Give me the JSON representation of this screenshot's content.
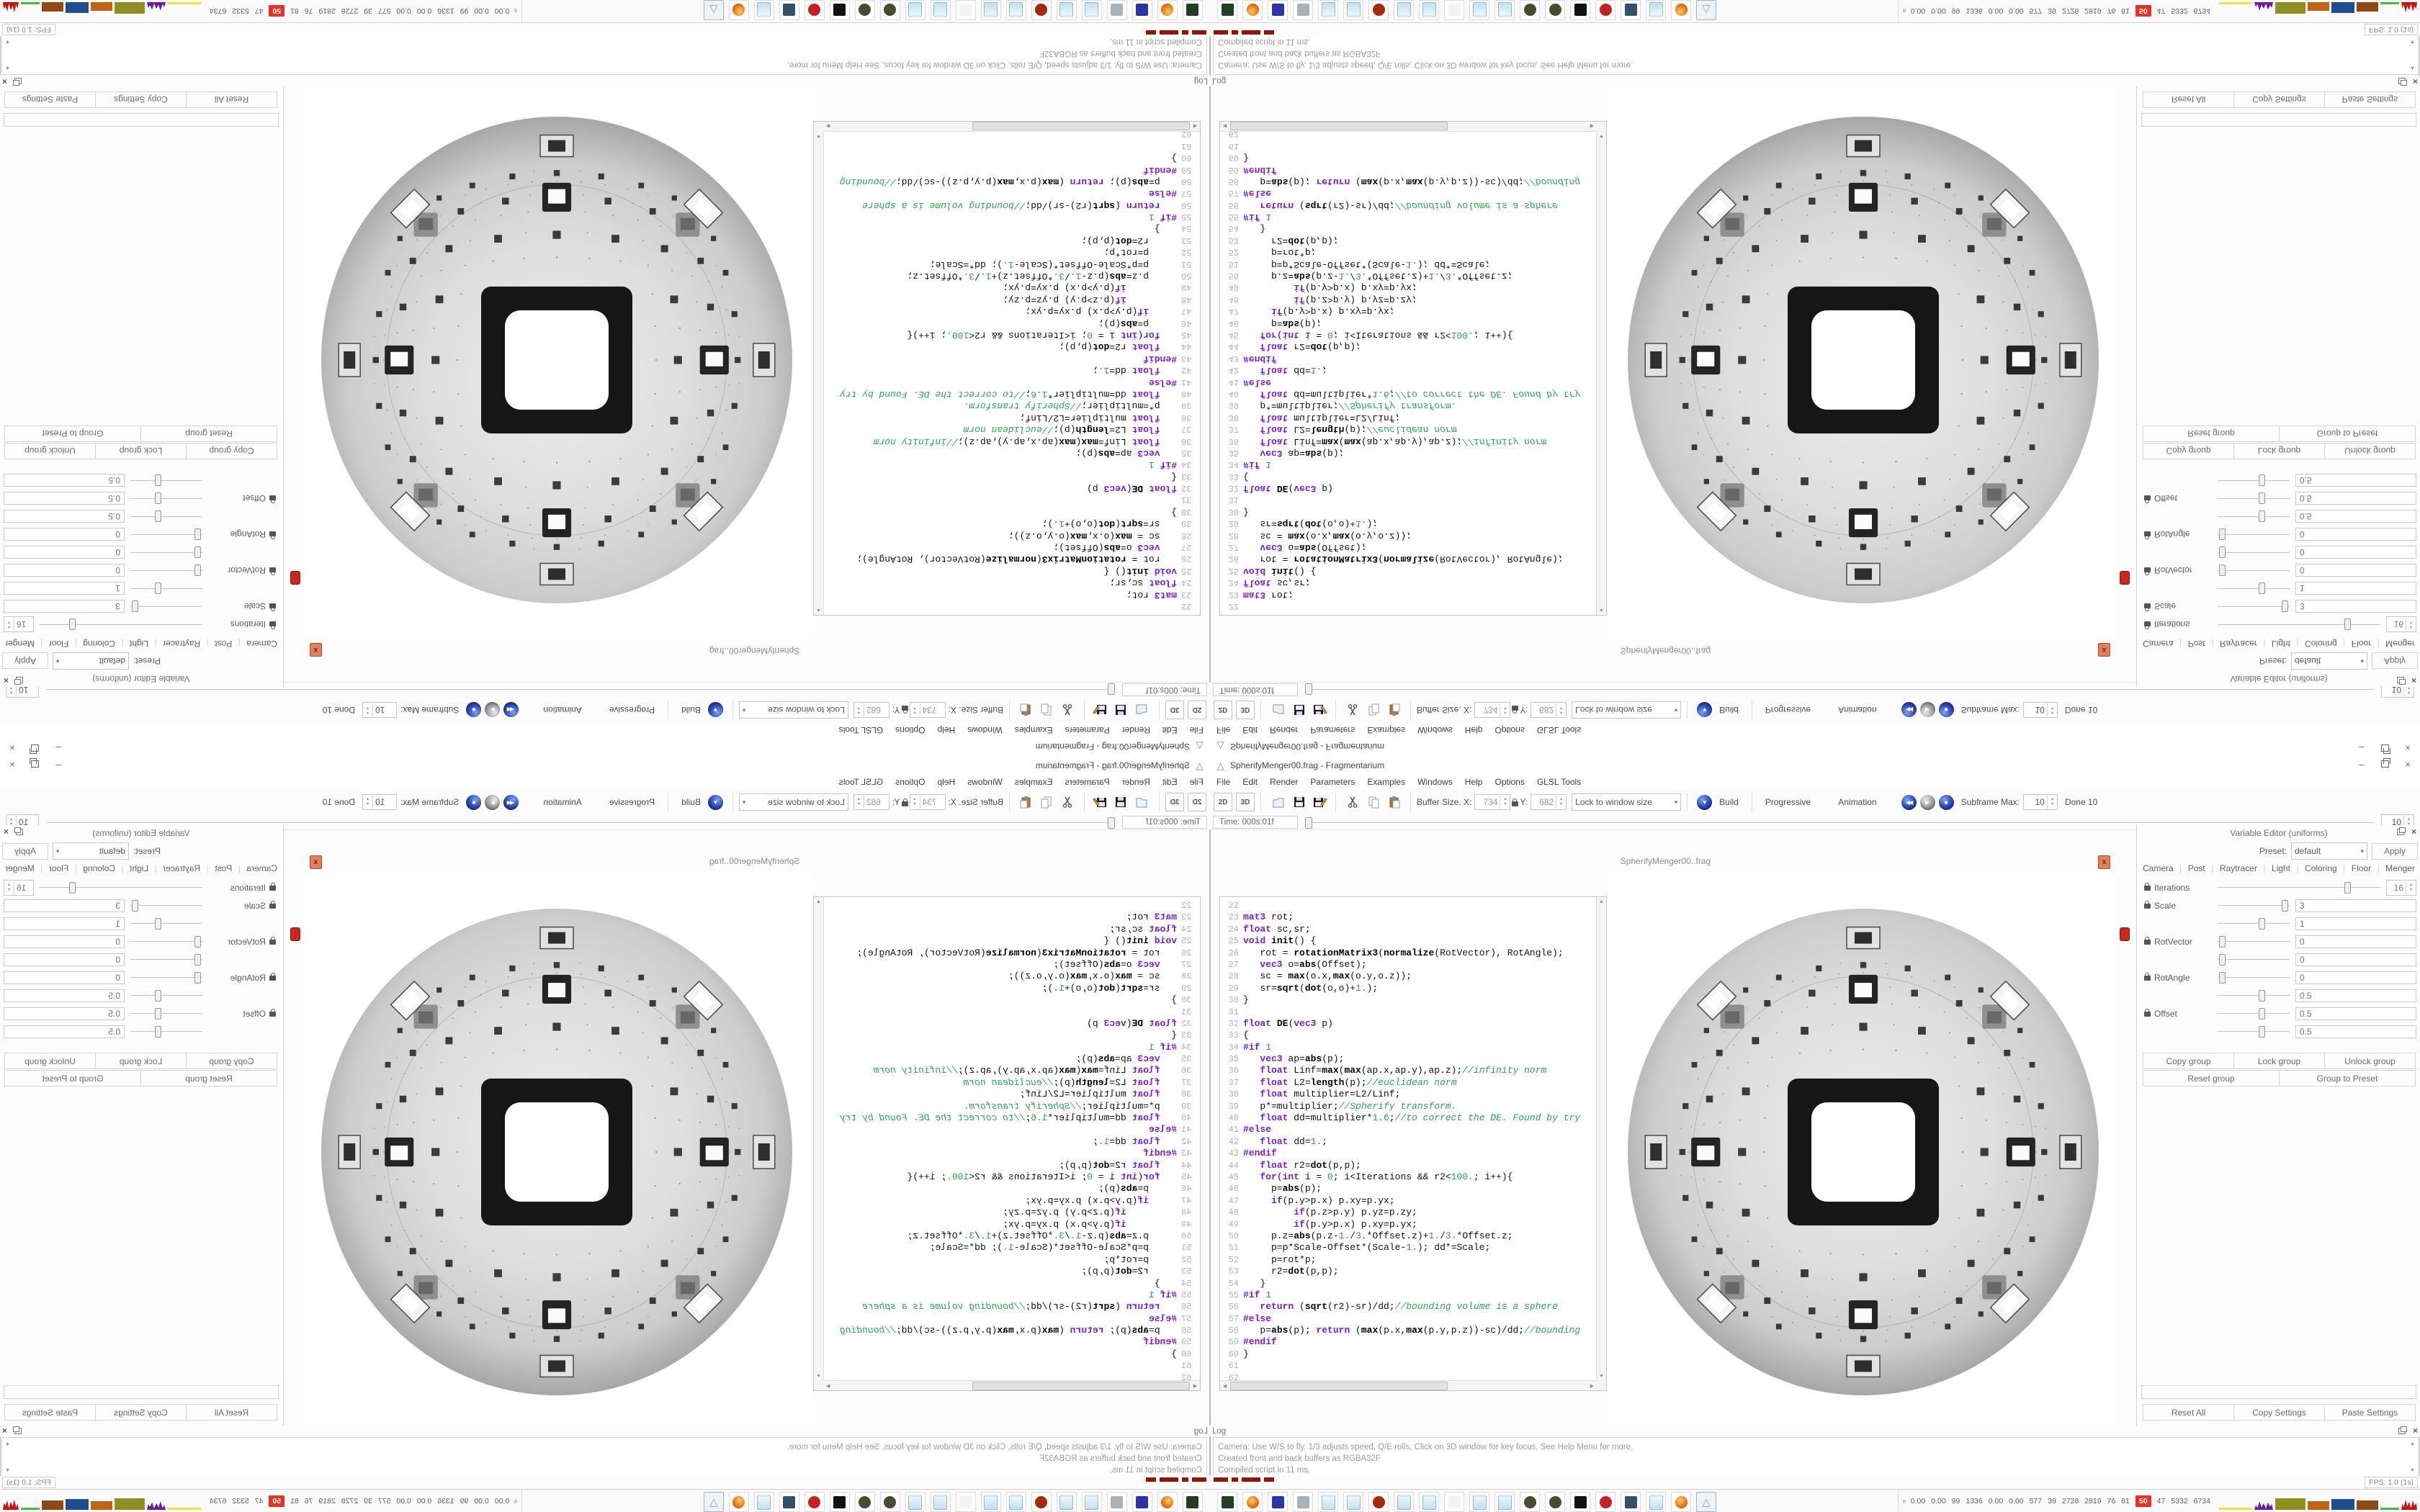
{
  "window": {
    "title": "SpherifyMenger00.frag - Fragmentarium"
  },
  "menu": {
    "items": [
      "File",
      "Edit",
      "Render",
      "Parameters",
      "Examples",
      "Windows",
      "Help",
      "Options",
      "GLSL Tools"
    ]
  },
  "toolbar": {
    "btn2d": "2D",
    "btn3d": "3D",
    "buffer_size_label": "Buffer Size. X:",
    "buffer_x": "734",
    "buffer_y_label": "Y:",
    "buffer_y": "682",
    "lock_window_combo": "Lock to window size",
    "build_label": "Build",
    "progressive_label": "Progressive",
    "animation_label": "Animation",
    "subframe_label": "Subframe Max:",
    "subframe_value": "10",
    "done_label": "Done 10"
  },
  "timebar": {
    "time_label": "Time: 000s:01f",
    "right_spin": "10"
  },
  "tabbar": {
    "tab_label": "SpherifyMenger00..frag",
    "close_glyph": "x"
  },
  "editor": {
    "first_line_number": 22,
    "lines": [
      "",
      "mat3 rot;",
      "float sc,sr;",
      "void init() {",
      "   rot = rotationMatrix3(normalize(RotVector), RotAngle);",
      "   vec3 o=abs(Offset);",
      "   sc = max(o.x,max(o.y,o.z));",
      "   sr=sqrt(dot(o,o)+1.);",
      "}",
      "",
      "float DE(vec3 p)",
      "{",
      "#if 1",
      "   vec3 ap=abs(p);",
      "   float Linf=max(max(ap.x,ap.y),ap.z);//infinity norm",
      "   float L2=length(p);//euclidean norm",
      "   float multiplier=L2/Linf;",
      "   p*=multiplier;//Spherify transform.",
      "   float dd=multiplier*1.6;//to correct the DE. Found by try",
      "#else",
      "   float dd=1.;",
      "#endif",
      "   float r2=dot(p,p);",
      "   for(int i = 0; i<Iterations && r2<100.; i++){",
      "     p=abs(p);",
      "     if(p.y>p.x) p.xy=p.yx;",
      "         if(p.z>p.y) p.yz=p.zy;",
      "         if(p.y>p.x) p.xy=p.yx;",
      "     p.z=abs(p.z-1./3.*Offset.z)+1./3.*Offset.z;",
      "     p=p*Scale-Offset*(Scale-1.); dd*=Scale;",
      "     p=rot*p;",
      "     r2=dot(p,p);",
      "   }",
      "#if 1",
      "   return (sqrt(r2)-sr)/dd;//bounding volume is a sphere",
      "#else",
      "   p=abs(p); return (max(p.x,max(p.y,p.z))-sc)/dd;//bounding",
      "#endif",
      "}",
      "",
      ""
    ]
  },
  "variable_editor": {
    "title": "Variable Editor (uniforms)",
    "preset_label": "Preset:",
    "preset_value": "default",
    "apply_label": "Apply",
    "tabs": [
      "Camera",
      "Post",
      "Raytracer",
      "Light",
      "Coloring",
      "Floor",
      "Menger"
    ],
    "active_tab": "Menger",
    "rows": [
      {
        "label": "Iterations",
        "value": "16",
        "slider": 0.79,
        "widget": "spin",
        "lock": true
      },
      {
        "label": "Scale",
        "value": "3",
        "slider": 0.92,
        "widget": "field",
        "lock": true
      },
      {
        "label": "",
        "value": "1",
        "slider": 0.6,
        "widget": "field",
        "lock": false
      },
      {
        "label": "RotVector",
        "value": "0",
        "slider": 0.05,
        "widget": "field",
        "lock": true
      },
      {
        "label": "",
        "value": "0",
        "slider": 0.05,
        "widget": "field",
        "lock": false
      },
      {
        "label": "RotAngle",
        "value": "0",
        "slider": 0.05,
        "widget": "field",
        "lock": true
      },
      {
        "label": "",
        "value": "0.5",
        "slider": 0.6,
        "widget": "field",
        "lock": false
      },
      {
        "label": "Offset",
        "value": "0.5",
        "slider": 0.6,
        "widget": "field",
        "lock": true
      },
      {
        "label": "",
        "value": "0.5",
        "slider": 0.6,
        "widget": "field",
        "lock": false
      }
    ],
    "group_buttons_row1": [
      "Copy group",
      "Lock group",
      "Unlock group"
    ],
    "group_buttons_row2": [
      "Reset group",
      "Group to Preset"
    ],
    "bottom_buttons": [
      "Reset All",
      "Copy Settings",
      "Paste Settings"
    ]
  },
  "log": {
    "title": "Log",
    "lines": [
      "Camera: Use W/S to fly, 1/3 adjusts speed, Q/E rolls, Click on 3D window for key focus, See Help Menu for more,",
      "Created front and back buffers as RGBA32F",
      "Compiled script in 11 ms,"
    ],
    "fps": "FPS: 1.0 (1s)"
  },
  "taskbar": {
    "icons": [
      {
        "name": "system-monitor-icon",
        "color": "#233f23",
        "kind": "plain"
      },
      {
        "name": "firefox-icon",
        "color": "#e66000",
        "kind": "ff"
      },
      {
        "name": "floppy-64-icon",
        "color": "#2a35a8",
        "kind": "plain"
      },
      {
        "name": "scroll-document-icon",
        "color": "#a8b2bb",
        "kind": "plain"
      },
      {
        "name": "notepad-icon",
        "color": "#bfe0ef",
        "kind": "pad"
      },
      {
        "name": "notepad-icon",
        "color": "#bfe0ef",
        "kind": "pad"
      },
      {
        "name": "red-splat-icon",
        "color": "#a52a0a",
        "kind": "round"
      },
      {
        "name": "notepad-icon",
        "color": "#bfe0ef",
        "kind": "pad"
      },
      {
        "name": "notepad-icon",
        "color": "#bfe0ef",
        "kind": "pad"
      },
      {
        "name": "ps-document-icon",
        "color": "#f2f2f7",
        "kind": "plain"
      },
      {
        "name": "notepad-icon",
        "color": "#bfe0ef",
        "kind": "pad"
      },
      {
        "name": "notepad-icon",
        "color": "#bfe0ef",
        "kind": "pad"
      },
      {
        "name": "dark-sphere-icon",
        "color": "#4c4a2e",
        "kind": "round"
      },
      {
        "name": "dark-sphere-icon",
        "color": "#4c4a2e",
        "kind": "round"
      },
      {
        "name": "wolf-icon",
        "color": "#101010",
        "kind": "plain"
      },
      {
        "name": "red-emblem-icon",
        "color": "#c42222",
        "kind": "round"
      },
      {
        "name": "monitor-icon",
        "color": "#34506b",
        "kind": "plain"
      },
      {
        "name": "notepad-icon",
        "color": "#bfe0ef",
        "kind": "pad"
      },
      {
        "name": "firefox-icon",
        "color": "#e66000",
        "kind": "ff"
      },
      {
        "name": "fragmentarium-icon",
        "color": "#d8d8d8",
        "kind": "tri",
        "active": true,
        "glyph": "△"
      }
    ],
    "tray_values": [
      "0.00",
      "0.00",
      "99",
      "1336",
      "0.00",
      "0.00",
      "577",
      "39",
      "2728",
      "2819",
      "76",
      "81",
      "50",
      "47",
      "5332",
      "6734"
    ],
    "tray_alert_value": "50",
    "tray_graph": [
      {
        "color": "#f0e23c",
        "w": 46,
        "h": 3,
        "type": "line"
      },
      {
        "color": "#6a1fa0",
        "w": 26,
        "h": 13,
        "type": "spiky"
      },
      {
        "color": "#8f8f22",
        "w": 42,
        "h": 16,
        "type": "block"
      },
      {
        "color": "#c06414",
        "w": 30,
        "h": 12,
        "type": "block"
      },
      {
        "color": "#1f4e8f",
        "w": 32,
        "h": 15,
        "type": "block"
      },
      {
        "color": "#8f4a13",
        "w": 30,
        "h": 13,
        "type": "block"
      },
      {
        "color": "#44bb44",
        "w": 26,
        "h": 3,
        "type": "line"
      },
      {
        "color": "#c41515",
        "w": 22,
        "h": 16,
        "type": "spiky"
      }
    ]
  },
  "colors": {
    "accent_blue": "#2a47b8",
    "tab_close_bg": "#e0805d",
    "alert_red": "#e83228"
  },
  "icons": {
    "app": "△",
    "minimize": "–",
    "close": "×",
    "dropdown": "▾",
    "spin_up": "▴",
    "spin_down": "▾",
    "scroll_up": "▲",
    "scroll_down": "▼",
    "scroll_left": "◀",
    "scroll_right": "▶",
    "rewind": "◀◀",
    "play": "▶",
    "stop": "■",
    "build": "▼",
    "lock_combo_arrow": "▾"
  }
}
